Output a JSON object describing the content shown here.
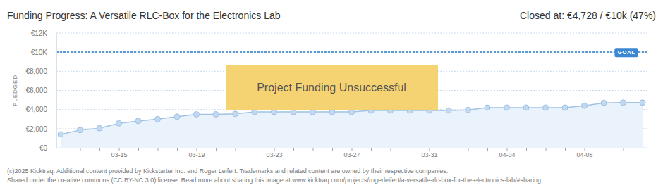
{
  "chart_data": {
    "type": "line",
    "title": "Funding Progress: A Versatile RLC-Box for the Electronics Lab",
    "subtitle": "Closed at: €4,728 / €10k (47%)",
    "y_label": "PLEDGED",
    "annotation": "Project Funding Unsuccessful",
    "goal": {
      "value": 10000,
      "label": "GOAL"
    },
    "notes": [
      "(c)2025 Kicktraq. Additional content provided by Kickstarter Inc. and Roger Leifert. Trademarks and related content are owned by their respective companies.",
      "Shared under the creative commons (CC BY-NC 3.0) license. Read more about sharing this image at www.kicktraq.com/projects/rogerleifert/a-versatile-rlc-box-for-the-electronics-lab/#sharing"
    ],
    "categories": [
      null,
      null,
      null,
      "03-15",
      null,
      null,
      null,
      "03-19",
      null,
      null,
      null,
      "03-23",
      null,
      null,
      null,
      "03-27",
      null,
      null,
      null,
      "03-31",
      null,
      null,
      null,
      "04-04",
      null,
      null,
      null,
      "04-08",
      null,
      null,
      null
    ],
    "values": [
      1400,
      1850,
      2050,
      2550,
      2800,
      3000,
      3250,
      3500,
      3500,
      3550,
      3750,
      3750,
      3750,
      3750,
      3750,
      3750,
      3900,
      3900,
      3900,
      3900,
      3900,
      3950,
      4200,
      4200,
      4200,
      4200,
      4200,
      4400,
      4700,
      4728,
      4728
    ],
    "color": "#9fc2e6",
    "marker": "circle",
    "grid": true,
    "ylim": [
      0,
      12000
    ],
    "yticks": [
      {
        "value": 0,
        "label": "€0"
      },
      {
        "value": 2000,
        "label": "€2,000"
      },
      {
        "value": 4000,
        "label": "€4,000"
      },
      {
        "value": 6000,
        "label": "€6,000"
      },
      {
        "value": 8000,
        "label": "€8,000"
      },
      {
        "value": 10000,
        "label": "€10K"
      },
      {
        "value": 12000,
        "label": "€12K"
      }
    ]
  }
}
